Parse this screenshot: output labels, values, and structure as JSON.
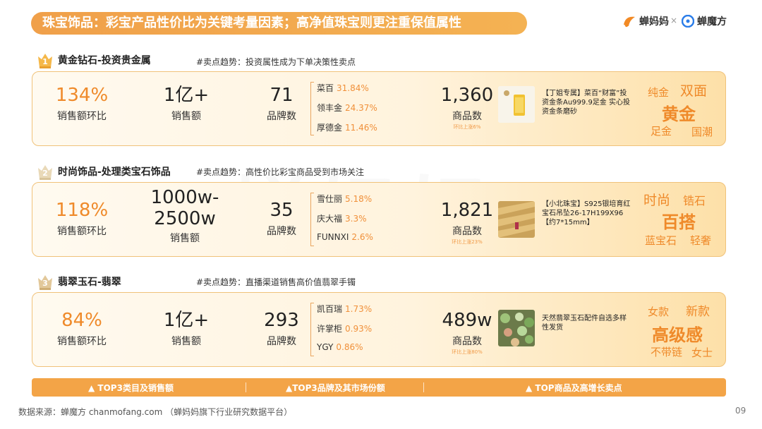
{
  "header": {
    "title": "珠宝饰品：彩宝产品性价比为关键考量因素；高净值珠宝则更注重保值属性",
    "brand_left": "蝉妈妈",
    "brand_sep": "×",
    "brand_right": "蝉魔方"
  },
  "watermark": "蝉妈妈",
  "sections": [
    {
      "num": "1",
      "name": "黄金钻石-投资贵金属",
      "trend": "#卖点趋势：投资属性成为下单决策性卖点",
      "growth": "134%",
      "growth_label": "销售额环比",
      "sales": "1亿+",
      "sales_label": "销售额",
      "brand_count": "71",
      "brand_count_label": "品牌数",
      "brands": [
        {
          "name": "菜百",
          "pct": "31.84%"
        },
        {
          "name": "领丰金",
          "pct": "24.37%"
        },
        {
          "name": "厚德金",
          "pct": "11.46%"
        }
      ],
      "goods": "1,360",
      "goods_label": "商品数",
      "goods_sub": "环比上涨6%",
      "product_desc": "【丁姐专属】菜百“财富”投资金条Au999.9足金 实心投资金条磨砂",
      "tags": {
        "t1": "纯金",
        "t2": "双面",
        "main": "黄金",
        "b1": "足金",
        "b2": "国潮"
      }
    },
    {
      "num": "2",
      "name": "时尚饰品-处理类宝石饰品",
      "trend": "#卖点趋势：高性价比彩宝商品受到市场关注",
      "growth": "118%",
      "growth_label": "销售额环比",
      "sales": "1000w-2500w",
      "sales_line1": "1000w-",
      "sales_line2": "2500w",
      "sales_label": "销售额",
      "brand_count": "35",
      "brand_count_label": "品牌数",
      "brands": [
        {
          "name": "雪仕丽",
          "pct": "5.18%"
        },
        {
          "name": "庆大福",
          "pct": "3.3%"
        },
        {
          "name": "FUNNXI",
          "pct": "2.6%"
        }
      ],
      "goods": "1,821",
      "goods_label": "商品数",
      "goods_sub": "环比上涨23%",
      "product_desc": "【小北珠宝】S925银培育红宝石吊坠26-17H199X96【约7*15mm】",
      "tags": {
        "t1": "时尚",
        "t2": "锆石",
        "main": "百搭",
        "b1": "蓝宝石",
        "b2": "轻奢"
      }
    },
    {
      "num": "3",
      "name": "翡翠玉石-翡翠",
      "trend": "#卖点趋势：直播渠道销售高价值翡翠手镯",
      "growth": "84%",
      "growth_label": "销售额环比",
      "sales": "1亿+",
      "sales_label": "销售额",
      "brand_count": "293",
      "brand_count_label": "品牌数",
      "brands": [
        {
          "name": "凯百瑞",
          "pct": "1.73%"
        },
        {
          "name": "许掌柜",
          "pct": "0.93%"
        },
        {
          "name": "YGY",
          "pct": "0.86%"
        }
      ],
      "goods": "489w",
      "goods_label": "商品数",
      "goods_sub": "环比上涨80%",
      "product_desc": "天然翡翠玉石配件自选多样性发货",
      "tags": {
        "t1": "女款",
        "t2": "新款",
        "main": "高级感",
        "b1": "不带链",
        "b2": "女士"
      }
    }
  ],
  "footer": {
    "col1": "▲ TOP3类目及销售额",
    "col2": "▲TOP3品牌及其市场份额",
    "col3": "▲ TOP商品及高增长卖点"
  },
  "source": "数据来源：蝉魔方 chanmofang.com （蝉妈妈旗下行业研究数据平台）",
  "page_number": "09",
  "colors": {
    "accent": "#ef8a2a",
    "bar": "#f3a447",
    "panel_border": "#f0c27a"
  }
}
